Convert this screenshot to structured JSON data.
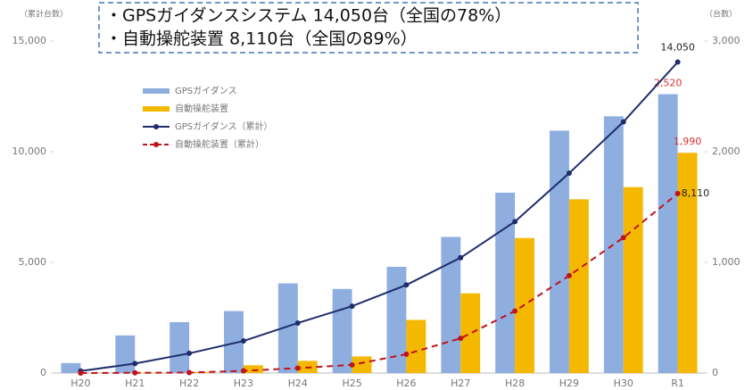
{
  "chart_data": {
    "type": "bar-line",
    "annotations": [
      "・GPSガイダンスシステム  14,050台（全国の78%）",
      "・自動操舵装置  8,110台（全国の89%）"
    ],
    "ylabel": "（累計台数）",
    "y2label": "（台数）",
    "categories": [
      "H20",
      "H21",
      "H22",
      "H23",
      "H24",
      "H25",
      "H26",
      "H27",
      "H28",
      "H29",
      "H30",
      "R1"
    ],
    "ylim": [
      0,
      15000
    ],
    "yticks": [
      0,
      {
        "value": 5000,
        "label": "5,000"
      },
      {
        "value": 10000,
        "label": "10,000"
      },
      {
        "value": 15000,
        "label": "15,000"
      }
    ],
    "y2lim": [
      0,
      3000
    ],
    "y2ticks": [
      0,
      {
        "value": 1000,
        "label": "1,000"
      },
      {
        "value": 2000,
        "label": "2,000"
      },
      {
        "value": 3000,
        "label": "3,000"
      }
    ],
    "series": [
      {
        "name": "GPSガイダンス",
        "kind": "bar",
        "axis": "y2",
        "color": "#8eaee0",
        "values": [
          90,
          340,
          460,
          560,
          810,
          760,
          960,
          1230,
          1630,
          2190,
          2320,
          2520
        ],
        "value_labels": [
          null,
          null,
          null,
          null,
          null,
          null,
          null,
          null,
          null,
          null,
          null,
          "2,520"
        ],
        "label_color": "#e03030"
      },
      {
        "name": "自動操舵装置",
        "kind": "bar",
        "axis": "y2",
        "color": "#f5b800",
        "values": [
          0,
          5,
          10,
          70,
          110,
          150,
          480,
          720,
          1220,
          1570,
          1680,
          1990
        ],
        "value_labels": [
          null,
          null,
          null,
          null,
          null,
          null,
          null,
          null,
          null,
          null,
          null,
          "1,990"
        ],
        "label_color": "#e03030"
      },
      {
        "name": "GPSガイダンス（累計）",
        "kind": "line",
        "color": "#1f2d6b",
        "values": [
          90,
          430,
          890,
          1450,
          2260,
          3020,
          3980,
          5210,
          6840,
          9030,
          11350,
          14050
        ],
        "value_labels": [
          null,
          null,
          null,
          null,
          null,
          null,
          null,
          null,
          null,
          null,
          null,
          "14,050"
        ],
        "label_color": "#222222"
      },
      {
        "name": "自動操舵装置（累計）",
        "kind": "line",
        "dashed": true,
        "color": "#c0141c",
        "values": [
          0,
          10,
          20,
          100,
          220,
          370,
          850,
          1570,
          2800,
          4400,
          6120,
          8110
        ],
        "value_labels": [
          null,
          null,
          null,
          null,
          null,
          null,
          null,
          null,
          null,
          null,
          null,
          "8,110"
        ],
        "label_color": "#222222"
      }
    ]
  }
}
